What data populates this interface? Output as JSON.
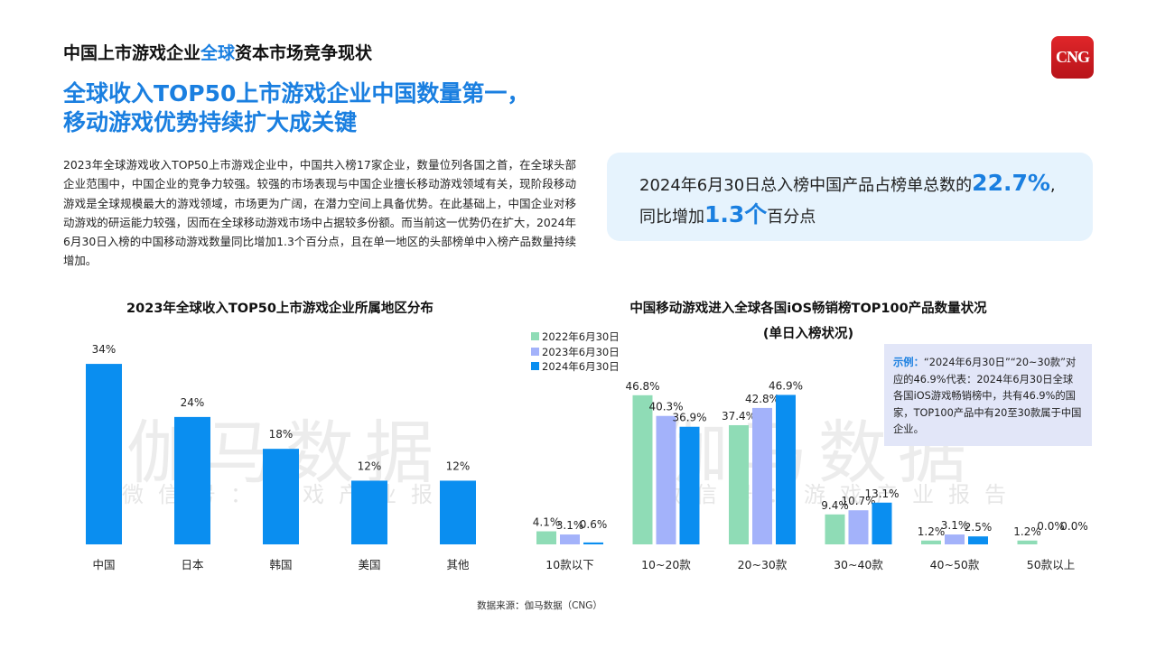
{
  "header": {
    "title_pre": "中国上市游戏企业",
    "title_hl": "全球",
    "title_post": "资本市场竞争现状",
    "logo_text": "CNG"
  },
  "headline": {
    "line1": "全球收入TOP50上市游戏企业中国数量第一，",
    "line2": "移动游戏优势持续扩大成关键"
  },
  "body_text": "2023年全球游戏收入TOP50上市游戏企业中，中国共入榜17家企业，数量位列各国之首，在全球头部企业范围中，中国企业的竞争力较强。较强的市场表现与中国企业擅长移动游戏领域有关，现阶段移动游戏是全球规模最大的游戏领域，市场更为广阔，在潜力空间上具备优势。在此基础上，中国企业对移动游戏的研运能力较强，因而在全球移动游戏市场中占据较多份额。而当前这一优势仍在扩大，2024年6月30日入榜的中国移动游戏数量同比增加1.3个百分点，且在单一地区的头部榜单中入榜产品数量持续增加。",
  "callout": {
    "pre": "2024年6月30日总入榜中国产品占榜单总数的",
    "value1": "22.7%",
    "post1": ",",
    "pre2": "同比增加",
    "value2": "1.3个",
    "post2": "百分点"
  },
  "note": {
    "label": "示例：",
    "text": "“2024年6月30日”“20~30款”对应的46.9%代表：2024年6月30日全球各国iOS游戏畅销榜中，共有46.9%的国家，TOP100产品中有20至30款属于中国企业。"
  },
  "watermark": {
    "main": "伽马数据",
    "sub": "微信号：游戏产业报告"
  },
  "source": "数据来源：伽马数据（CNG）",
  "colors": {
    "accent": "#1a7fe0",
    "bar_left": "#0a8ef0",
    "s2022": "#8fdcb6",
    "s2023": "#a3b2fa",
    "s2024": "#0a8ef0"
  },
  "chart_data": [
    {
      "type": "bar",
      "title": "2023年全球收入TOP50上市游戏企业所属地区分布",
      "categories": [
        "中国",
        "日本",
        "韩国",
        "美国",
        "其他"
      ],
      "values": [
        34,
        24,
        18,
        12,
        12
      ],
      "labels": [
        "34%",
        "24%",
        "18%",
        "12%",
        "12%"
      ],
      "unit": "%",
      "ylim": [
        0,
        34
      ],
      "grid": false
    },
    {
      "type": "bar",
      "title": "中国移动游戏进入全球各国iOS畅销榜TOP100产品数量状况",
      "subtitle": "(单日入榜状况)",
      "categories": [
        "10款以下",
        "10~20款",
        "20~30款",
        "30~40款",
        "40~50款",
        "50款以上"
      ],
      "series": [
        {
          "name": "2022年6月30日",
          "values": [
            4.1,
            46.8,
            37.4,
            9.4,
            1.2,
            1.2
          ]
        },
        {
          "name": "2023年6月30日",
          "values": [
            3.1,
            40.3,
            42.8,
            10.7,
            3.1,
            0.0
          ]
        },
        {
          "name": "2024年6月30日",
          "values": [
            0.6,
            36.9,
            46.9,
            13.1,
            2.5,
            0.0
          ]
        }
      ],
      "unit": "%",
      "legend": "top-left",
      "grid": false
    }
  ]
}
